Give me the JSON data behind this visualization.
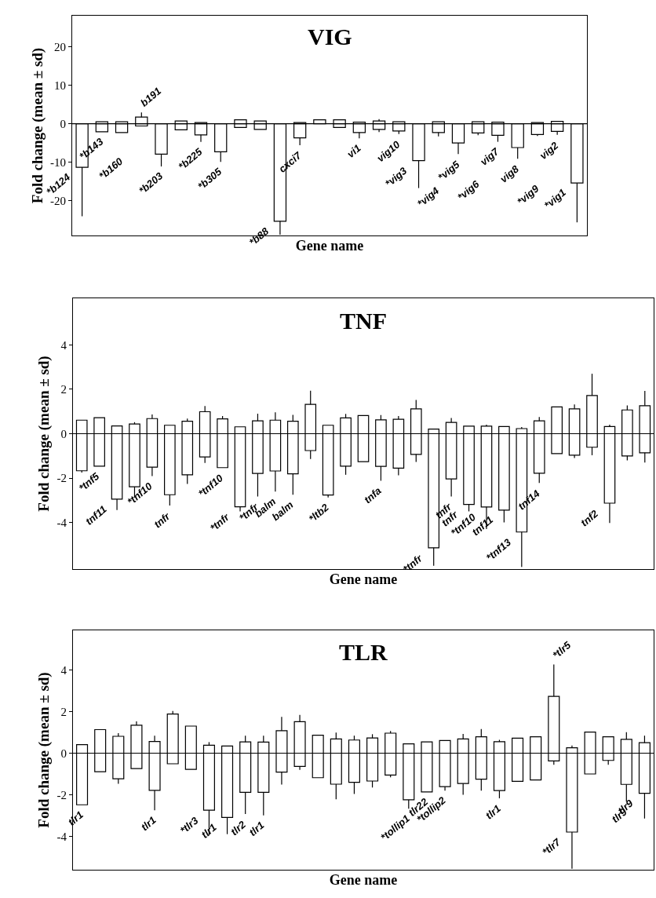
{
  "chart_data": [
    {
      "type": "bar",
      "title": "VIG",
      "xlabel": "Gene name",
      "ylabel": "Fold change (mean ± sd)",
      "stacked": true,
      "tick_labels": "y",
      "categories": [
        "*b124",
        "*b143",
        "*b160",
        "b191",
        "*b203",
        null,
        "*b225",
        "*b305",
        null,
        null,
        "*b88",
        "cxci7",
        null,
        null,
        "vi1",
        null,
        "vig10",
        "*vig3",
        "*vig4",
        "*vig5",
        "*vig6",
        "vig7",
        "vig8",
        "*vig9",
        "vig2",
        "*vig1"
      ],
      "series": [
        {
          "color": "#ffffff",
          "values": [
            null,
            0.5,
            0.5,
            1.7,
            null,
            0.7,
            0.3,
            null,
            1.0,
            0.7,
            null,
            0.3,
            1.0,
            1.0,
            0.4,
            0.7,
            0.5,
            null,
            0.5,
            null,
            0.5,
            0.4,
            null,
            0.3,
            0.6,
            null
          ],
          "errors": [
            null,
            null,
            null,
            [
              1.7,
              2.9
            ],
            null,
            null,
            null,
            null,
            null,
            null,
            null,
            null,
            null,
            null,
            null,
            [
              0.7,
              1.2
            ],
            null,
            null,
            null,
            null,
            null,
            null,
            null,
            null,
            null,
            null
          ]
        },
        {
          "color": "#ffffff",
          "values": [
            -11.3,
            -2.1,
            -2.3,
            -0.6,
            -7.9,
            -1.6,
            -2.9,
            -7.3,
            -1.0,
            -1.5,
            -25.3,
            -3.7,
            null,
            -1.0,
            -2.3,
            -1.5,
            -1.9,
            -9.6,
            -2.3,
            -5.0,
            -2.4,
            -3.0,
            -6.2,
            -2.8,
            -2.0,
            -15.4
          ],
          "errors": [
            [
              -24,
              -11.3
            ],
            null,
            null,
            null,
            [
              -11.1,
              -7.9
            ],
            null,
            [
              -4.7,
              -2.9
            ],
            [
              -9.9,
              -7.3
            ],
            null,
            null,
            [
              -28.8,
              -25.3
            ],
            [
              -5.6,
              -3.7
            ],
            null,
            null,
            [
              -3.8,
              -2.3
            ],
            [
              -2.2,
              -1.5
            ],
            [
              -2.7,
              -1.9
            ],
            [
              -16.7,
              -9.6
            ],
            [
              -3.3,
              -2.3
            ],
            [
              -7.9,
              -5.0
            ],
            [
              -3.0,
              -2.4
            ],
            [
              -4.7,
              -3.0
            ],
            [
              -9.1,
              -6.2
            ],
            [
              -3.2,
              -2.8
            ],
            [
              -2.9,
              -2.0
            ],
            [
              -25.6,
              -15.4
            ]
          ]
        }
      ],
      "ylim": [
        -29,
        28
      ],
      "yticks": [
        -20,
        -10,
        0,
        10,
        20
      ],
      "ref_lines": [
        {
          "axis": "y",
          "value": 0,
          "color": "#000000"
        }
      ]
    },
    {
      "type": "bar",
      "title": "TNF",
      "xlabel": "Gene name",
      "ylabel": "Fold change (mean ± sd)",
      "stacked": true,
      "tick_labels": "y",
      "categories": [
        null,
        "*tnf5",
        "tnf11",
        null,
        "*tnf10",
        "tnfr",
        null,
        null,
        "*tnf10",
        "*tnfr",
        "*tnfr",
        "balm",
        "balm",
        null,
        "*ltb2",
        null,
        null,
        "tnfa",
        null,
        null,
        "*tnfr",
        "tnfr",
        "tnfr",
        "*tnf10",
        "tnf11",
        "*tnf13",
        "tnf14",
        null,
        null,
        null,
        "tnf2",
        null,
        null
      ],
      "series": [
        {
          "color": "#ffffff",
          "values": [
            0.61,
            0.72,
            0.35,
            0.44,
            0.68,
            0.38,
            0.56,
            0.99,
            0.67,
            0.31,
            0.58,
            0.61,
            0.56,
            1.32,
            0.38,
            0.71,
            0.82,
            0.62,
            0.65,
            1.12,
            0.21,
            0.51,
            0.34,
            0.34,
            0.32,
            0.23,
            0.58,
            1.21,
            1.12,
            1.72,
            0.32,
            1.07,
            1.26
          ],
          "errors": [
            null,
            null,
            null,
            [
              0.44,
              0.52
            ],
            [
              0.68,
              0.87
            ],
            null,
            [
              0.56,
              0.68
            ],
            [
              0.99,
              1.25
            ],
            [
              0.67,
              0.8
            ],
            null,
            [
              0.58,
              0.9
            ],
            [
              0.61,
              0.96
            ],
            [
              0.56,
              0.85
            ],
            [
              1.32,
              1.94
            ],
            null,
            [
              0.71,
              0.89
            ],
            null,
            [
              0.62,
              0.84
            ],
            [
              0.65,
              0.8
            ],
            [
              1.12,
              1.52
            ],
            null,
            [
              0.51,
              0.71
            ],
            null,
            [
              0.34,
              0.41
            ],
            null,
            [
              0.23,
              0.3
            ],
            [
              0.58,
              0.75
            ],
            null,
            [
              1.12,
              1.32
            ],
            [
              1.72,
              2.7
            ],
            [
              0.32,
              0.41
            ],
            [
              1.07,
              1.27
            ],
            [
              1.26,
              1.93
            ]
          ]
        },
        {
          "color": "#ffffff",
          "values": [
            -1.67,
            -1.46,
            -2.95,
            -2.39,
            -1.51,
            -2.75,
            -1.85,
            -1.05,
            -1.53,
            -3.29,
            -1.79,
            -1.68,
            -1.81,
            -0.76,
            -2.76,
            -1.46,
            -1.26,
            -1.47,
            -1.55,
            -0.93,
            -5.14,
            -2.04,
            -3.19,
            -3.3,
            -3.44,
            -4.43,
            -1.78,
            -0.9,
            -0.97,
            -0.61,
            -3.13,
            -1.0,
            -0.86
          ],
          "errors": [
            [
              -1.75,
              -1.67
            ],
            null,
            [
              -3.44,
              -2.95
            ],
            [
              -2.88,
              -2.39
            ],
            [
              -1.91,
              -1.51
            ],
            [
              -3.24,
              -2.75
            ],
            [
              -2.26,
              -1.85
            ],
            [
              -1.32,
              -1.05
            ],
            null,
            [
              -3.5,
              -3.29
            ],
            [
              -2.83,
              -1.79
            ],
            [
              -2.61,
              -1.68
            ],
            [
              -2.75,
              -1.81
            ],
            [
              -1.14,
              -0.76
            ],
            [
              -2.87,
              -2.76
            ],
            [
              -1.85,
              -1.46
            ],
            null,
            [
              -2.12,
              -1.47
            ],
            [
              -1.87,
              -1.55
            ],
            [
              -1.27,
              -0.93
            ],
            [
              -5.95,
              -5.14
            ],
            [
              -2.83,
              -2.04
            ],
            [
              -3.5,
              -3.19
            ],
            [
              -4.3,
              -3.3
            ],
            [
              -4.0,
              -3.44
            ],
            [
              -6.0,
              -4.43
            ],
            [
              -2.22,
              -1.78
            ],
            null,
            [
              -1.1,
              -0.97
            ],
            [
              -0.97,
              -0.61
            ],
            [
              -4.02,
              -3.13
            ],
            [
              -1.2,
              -1.0
            ],
            [
              -1.3,
              -0.86
            ]
          ]
        }
      ],
      "ylim": [
        -6.1,
        6.1
      ],
      "yticks": [
        -4,
        -2,
        0,
        2,
        4
      ],
      "ref_lines": [
        {
          "axis": "y",
          "value": 0,
          "color": "#000000"
        }
      ]
    },
    {
      "type": "bar",
      "title": "TLR",
      "xlabel": "Gene name",
      "ylabel": "Fold change (mean ± sd)",
      "stacked": true,
      "tick_labels": "y",
      "categories": [
        "tlr1",
        null,
        null,
        null,
        "tlr1",
        null,
        null,
        "*tlr3",
        "tlr1",
        "tlr2",
        "tlr1",
        null,
        null,
        null,
        null,
        null,
        null,
        null,
        "*tollip1",
        "tlr22",
        "*tollip2",
        null,
        null,
        "tlr1",
        null,
        null,
        "*tlr5",
        "*tlr7",
        null,
        null,
        "tlr9",
        "tlr9"
      ],
      "series": [
        {
          "color": "#ffffff",
          "values": [
            0.41,
            1.13,
            0.81,
            1.34,
            0.56,
            1.88,
            1.3,
            0.38,
            0.34,
            0.54,
            0.53,
            1.08,
            1.51,
            0.86,
            0.68,
            0.63,
            0.73,
            0.96,
            0.45,
            0.54,
            0.61,
            0.68,
            0.79,
            0.55,
            0.72,
            0.79,
            2.73,
            0.26,
            1.01,
            0.79,
            0.66,
            0.5
          ],
          "errors": [
            null,
            null,
            [
              0.81,
              0.96
            ],
            [
              1.34,
              1.53
            ],
            [
              0.56,
              0.84
            ],
            [
              1.88,
              2.03
            ],
            null,
            [
              0.38,
              0.53
            ],
            null,
            [
              0.54,
              0.84
            ],
            [
              0.53,
              0.84
            ],
            [
              1.08,
              1.74
            ],
            [
              1.51,
              1.84
            ],
            null,
            [
              0.68,
              0.99
            ],
            [
              0.63,
              0.84
            ],
            [
              0.73,
              0.91
            ],
            [
              0.96,
              1.06
            ],
            null,
            null,
            null,
            [
              0.68,
              0.92
            ],
            [
              0.79,
              1.16
            ],
            [
              0.55,
              0.64
            ],
            null,
            null,
            [
              2.73,
              4.26
            ],
            [
              0.26,
              0.37
            ],
            null,
            null,
            [
              0.66,
              1.01
            ],
            [
              0.5,
              0.84
            ]
          ]
        },
        {
          "color": "#ffffff",
          "values": [
            -2.48,
            -0.89,
            -1.23,
            -0.74,
            -1.79,
            -0.51,
            -0.78,
            -2.74,
            -3.09,
            -1.88,
            -1.88,
            -0.91,
            -0.64,
            -1.18,
            -1.49,
            -1.4,
            -1.34,
            -1.05,
            -2.24,
            -1.86,
            -1.61,
            -1.46,
            -1.25,
            -1.8,
            -1.35,
            -1.29,
            -0.37,
            -3.79,
            -1.0,
            -0.35,
            -1.5,
            -1.93
          ],
          "errors": [
            null,
            null,
            [
              -1.47,
              -1.23
            ],
            null,
            [
              -2.74,
              -1.79
            ],
            null,
            null,
            [
              -3.95,
              -2.74
            ],
            [
              -3.89,
              -3.09
            ],
            [
              -2.92,
              -1.88
            ],
            [
              -2.99,
              -1.88
            ],
            [
              -1.51,
              -0.91
            ],
            [
              -0.8,
              -0.64
            ],
            null,
            [
              -2.22,
              -1.49
            ],
            [
              -1.96,
              -1.4
            ],
            [
              -1.65,
              -1.34
            ],
            [
              -1.16,
              -1.05
            ],
            [
              -2.67,
              -2.24
            ],
            null,
            [
              -1.8,
              -1.61
            ],
            [
              -2.0,
              -1.46
            ],
            [
              -1.8,
              -1.25
            ],
            [
              -2.17,
              -1.8
            ],
            null,
            null,
            [
              -0.56,
              -0.37
            ],
            [
              -5.55,
              -3.79
            ],
            null,
            [
              -0.56,
              -0.35
            ],
            [
              -2.33,
              -1.5
            ],
            [
              -3.14,
              -1.93
            ]
          ]
        }
      ],
      "ylim": [
        -5.6,
        5.9
      ],
      "yticks": [
        -4,
        -2,
        0,
        2,
        4
      ],
      "ref_lines": [
        {
          "axis": "y",
          "value": 0,
          "color": "#000000"
        }
      ]
    }
  ]
}
